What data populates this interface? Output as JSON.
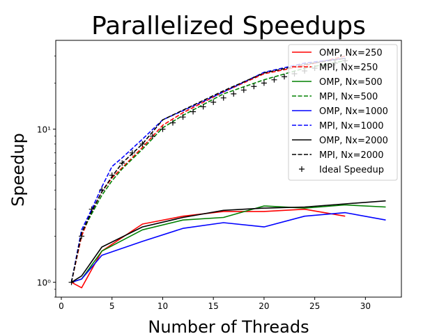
{
  "chart_data": {
    "type": "line",
    "title": "Parallelized Speedups",
    "xlabel": "Number of Threads",
    "ylabel": "Speedup",
    "xlim": [
      -0.55,
      33.55
    ],
    "ylim": [
      0.8,
      38
    ],
    "yscale": "log",
    "grid": false,
    "legend_position": "top-right",
    "x_ticks": [
      0,
      5,
      10,
      15,
      20,
      25,
      30
    ],
    "x_tick_labels": [
      "0",
      "5",
      "10",
      "15",
      "20",
      "25",
      "30"
    ],
    "y_ticks": [
      1,
      10
    ],
    "y_tick_labels": [
      "10⁰",
      "10¹"
    ],
    "series": [
      {
        "name": "OMP, Nx=250",
        "color": "#ff0000",
        "style": "solid",
        "x": [
          1,
          2,
          4,
          8,
          12,
          16,
          20,
          24,
          28
        ],
        "y": [
          1.0,
          0.92,
          1.6,
          2.4,
          2.7,
          2.9,
          2.9,
          3.0,
          2.7
        ]
      },
      {
        "name": "MPI, Nx=250",
        "color": "#ff0000",
        "style": "dashed",
        "x": [
          1,
          2,
          3,
          4,
          5,
          6,
          8,
          10,
          12,
          16,
          20,
          24,
          28
        ],
        "y": [
          1.0,
          2.0,
          2.9,
          3.9,
          4.8,
          5.6,
          7.6,
          10.6,
          12.8,
          17.5,
          23,
          26,
          30
        ]
      },
      {
        "name": "OMP, Nx=500",
        "color": "#008000",
        "style": "solid",
        "x": [
          1,
          2,
          4,
          8,
          12,
          16,
          20,
          24,
          28,
          32
        ],
        "y": [
          1.0,
          1.05,
          1.6,
          2.2,
          2.55,
          2.65,
          3.15,
          3.05,
          3.2,
          3.1
        ]
      },
      {
        "name": "MPI, Nx=500",
        "color": "#008000",
        "style": "dashed",
        "x": [
          1,
          2,
          3,
          4,
          5,
          6,
          8,
          10,
          12,
          16,
          20,
          24,
          28
        ],
        "y": [
          1.0,
          2.1,
          2.8,
          3.7,
          4.6,
          5.5,
          7.4,
          10.2,
          12.3,
          17,
          21,
          25,
          28
        ]
      },
      {
        "name": "OMP, Nx=1000",
        "color": "#0000ff",
        "style": "solid",
        "x": [
          1,
          2,
          4,
          8,
          12,
          16,
          20,
          24,
          28,
          32
        ],
        "y": [
          1.0,
          1.05,
          1.5,
          1.85,
          2.25,
          2.45,
          2.3,
          2.7,
          2.85,
          2.55
        ]
      },
      {
        "name": "MPI, Nx=1000",
        "color": "#0000ff",
        "style": "dashed",
        "x": [
          1,
          2,
          3,
          4,
          5,
          6,
          8,
          10,
          12,
          16,
          20,
          24,
          28
        ],
        "y": [
          1.0,
          2.2,
          3.0,
          4.2,
          5.7,
          6.5,
          8.6,
          11.5,
          13.2,
          17.5,
          23.5,
          27,
          29
        ]
      },
      {
        "name": "OMP, Nx=2000",
        "color": "#000000",
        "style": "solid",
        "x": [
          1,
          2,
          4,
          8,
          12,
          16,
          20,
          24,
          28,
          32
        ],
        "y": [
          1.0,
          1.1,
          1.7,
          2.3,
          2.65,
          2.95,
          3.05,
          3.1,
          3.25,
          3.4
        ]
      },
      {
        "name": "MPI, Nx=2000",
        "color": "#000000",
        "style": "dashed",
        "x": [
          1,
          2,
          3,
          4,
          5,
          6,
          8,
          10,
          12,
          16,
          20,
          24,
          28
        ],
        "y": [
          1.0,
          2.1,
          2.9,
          3.9,
          4.9,
          6.0,
          8.0,
          11.5,
          13.3,
          17.8,
          23.3,
          26.5,
          29
        ]
      },
      {
        "name": "Ideal Speedup",
        "color": "#000000",
        "style": "marker-plus",
        "x": [
          1,
          2,
          3,
          4,
          5,
          6,
          7,
          8,
          9,
          10,
          11,
          12,
          13,
          14,
          15,
          16,
          17,
          18,
          19,
          20,
          21,
          22,
          23,
          24,
          25,
          26,
          27,
          28
        ],
        "y": [
          1,
          2,
          3,
          4,
          5,
          6,
          7,
          8,
          9,
          10,
          11,
          12,
          13,
          14,
          15,
          16,
          17,
          18,
          19,
          20,
          21,
          22,
          23,
          24,
          25,
          26,
          27,
          28
        ]
      }
    ]
  }
}
